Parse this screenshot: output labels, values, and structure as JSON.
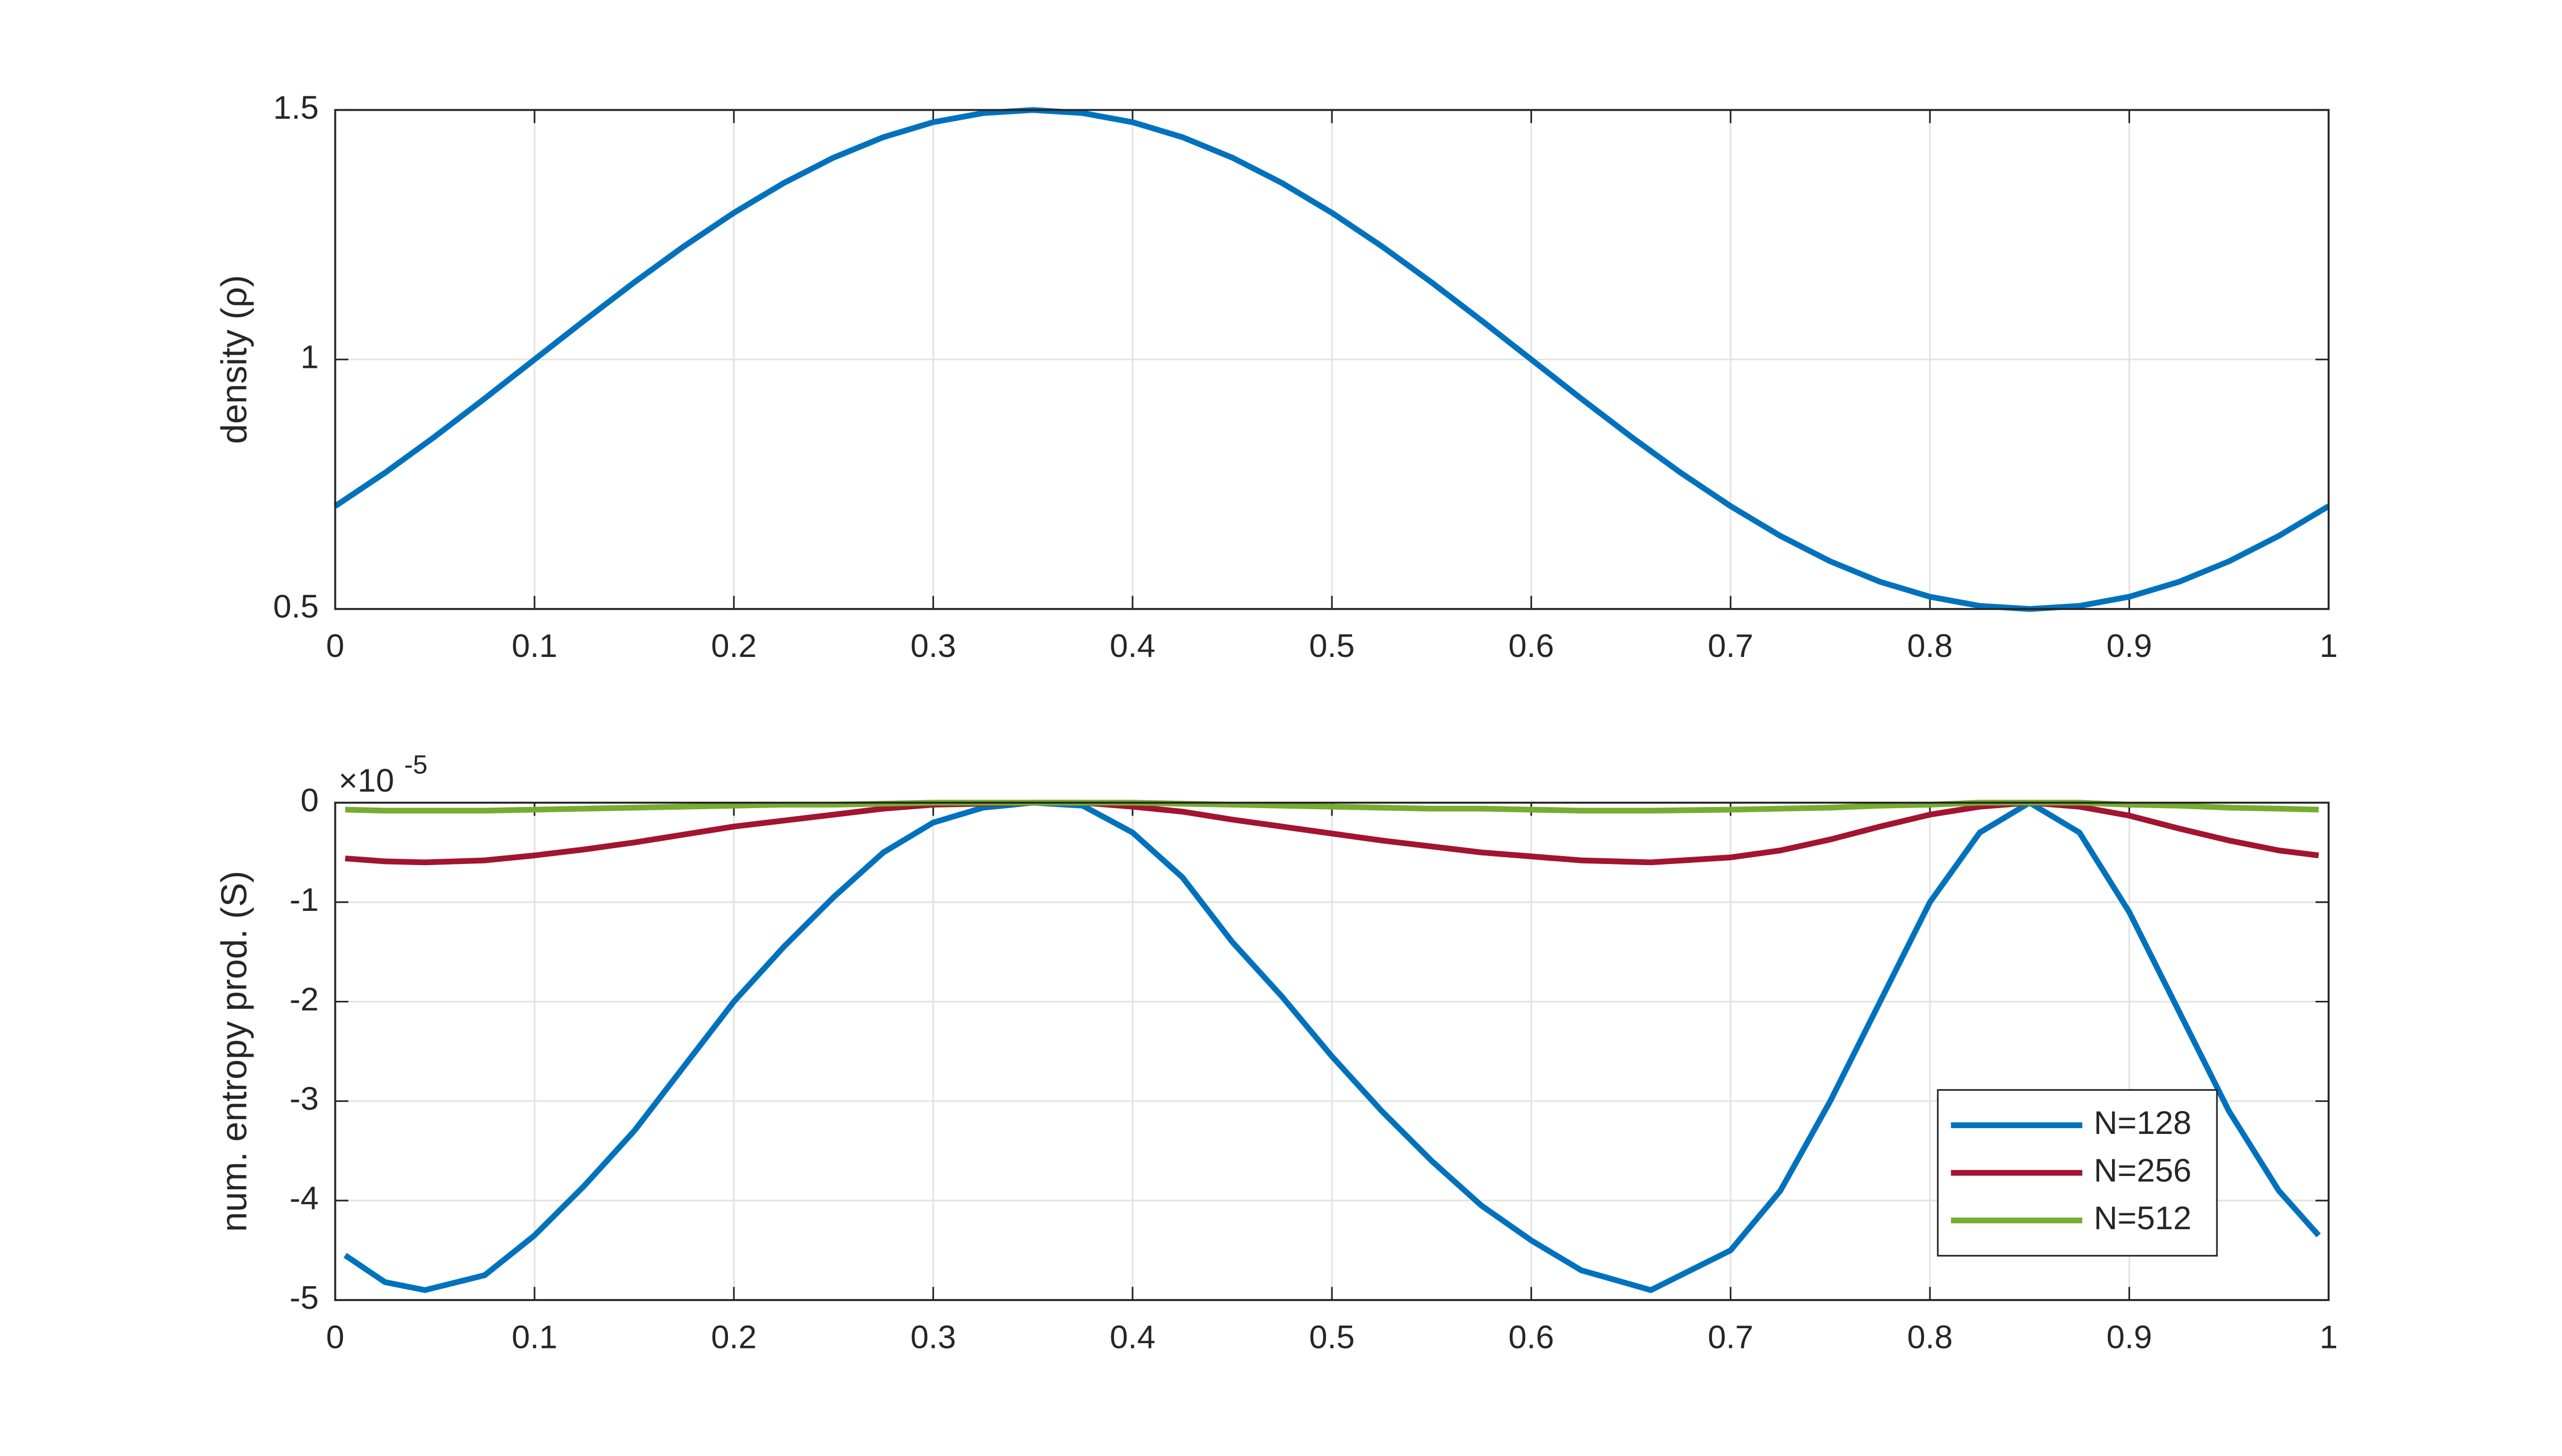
{
  "chart_data": [
    {
      "type": "line",
      "ylabel": "density (ρ)",
      "x": [
        0,
        0.025,
        0.05,
        0.075,
        0.1,
        0.125,
        0.15,
        0.175,
        0.2,
        0.225,
        0.25,
        0.275,
        0.3,
        0.325,
        0.35,
        0.375,
        0.4,
        0.425,
        0.45,
        0.475,
        0.5,
        0.525,
        0.55,
        0.575,
        0.6,
        0.625,
        0.65,
        0.675,
        0.7,
        0.725,
        0.75,
        0.775,
        0.8,
        0.825,
        0.85,
        0.875,
        0.9,
        0.925,
        0.95,
        0.975,
        1
      ],
      "series": [
        {
          "color": "#0072bd",
          "values": [
            0.7061,
            0.773,
            0.8455,
            0.9218,
            1.0,
            1.0782,
            1.1545,
            1.227,
            1.2939,
            1.3536,
            1.4045,
            1.4455,
            1.4755,
            1.4938,
            1.5,
            1.4938,
            1.4755,
            1.4455,
            1.4045,
            1.3536,
            1.2939,
            1.227,
            1.1545,
            1.0782,
            1.0,
            0.9218,
            0.8455,
            0.773,
            0.7061,
            0.6464,
            0.5955,
            0.5545,
            0.5245,
            0.5062,
            0.5,
            0.5062,
            0.5245,
            0.5545,
            0.5955,
            0.6464,
            0.7061
          ]
        }
      ],
      "xlim": [
        0,
        1
      ],
      "xticks": [
        0,
        0.1,
        0.2,
        0.3,
        0.4,
        0.5,
        0.6,
        0.7,
        0.8,
        0.9,
        1
      ],
      "ylim": [
        0.5,
        1.5
      ],
      "yticks": [
        0.5,
        1,
        1.5
      ],
      "grid": true
    },
    {
      "type": "line",
      "ylabel": "num. entropy prod. (S)",
      "y_exponent": {
        "base": "×10",
        "power": "-5"
      },
      "x": [
        0.005,
        0.025,
        0.045,
        0.075,
        0.1,
        0.125,
        0.15,
        0.175,
        0.2,
        0.225,
        0.25,
        0.275,
        0.3,
        0.325,
        0.35,
        0.375,
        0.4,
        0.425,
        0.45,
        0.475,
        0.5,
        0.525,
        0.55,
        0.575,
        0.6,
        0.625,
        0.66,
        0.7,
        0.725,
        0.75,
        0.775,
        0.8,
        0.825,
        0.85,
        0.875,
        0.9,
        0.925,
        0.95,
        0.975,
        0.995
      ],
      "series": [
        {
          "name": "N=128",
          "color": "#0072bd",
          "values": [
            -4.55,
            -4.82,
            -4.9,
            -4.75,
            -4.35,
            -3.85,
            -3.3,
            -2.65,
            -2.0,
            -1.45,
            -0.95,
            -0.5,
            -0.2,
            -0.05,
            0,
            -0.03,
            -0.3,
            -0.75,
            -1.4,
            -1.95,
            -2.55,
            -3.1,
            -3.6,
            -4.05,
            -4.4,
            -4.7,
            -4.9,
            -4.5,
            -3.9,
            -3.0,
            -2.0,
            -1.0,
            -0.3,
            0,
            -0.3,
            -1.1,
            -2.1,
            -3.1,
            -3.9,
            -4.35
          ]
        },
        {
          "name": "N=256",
          "color": "#a2142f",
          "values": [
            -0.56,
            -0.59,
            -0.6,
            -0.58,
            -0.53,
            -0.47,
            -0.4,
            -0.32,
            -0.24,
            -0.18,
            -0.12,
            -0.06,
            -0.02,
            -0.01,
            0,
            0,
            -0.04,
            -0.09,
            -0.17,
            -0.24,
            -0.31,
            -0.38,
            -0.44,
            -0.5,
            -0.54,
            -0.58,
            -0.6,
            -0.55,
            -0.48,
            -0.37,
            -0.24,
            -0.12,
            -0.04,
            0,
            -0.04,
            -0.13,
            -0.26,
            -0.38,
            -0.48,
            -0.53
          ]
        },
        {
          "name": "N=512",
          "color": "#77ac30",
          "values": [
            -0.07,
            -0.08,
            -0.08,
            -0.08,
            -0.07,
            -0.06,
            -0.05,
            -0.04,
            -0.03,
            -0.02,
            -0.02,
            -0.01,
            0,
            0,
            0,
            0,
            0,
            -0.01,
            -0.02,
            -0.03,
            -0.04,
            -0.05,
            -0.06,
            -0.06,
            -0.07,
            -0.08,
            -0.08,
            -0.07,
            -0.06,
            -0.05,
            -0.03,
            -0.02,
            0,
            0,
            0,
            -0.02,
            -0.03,
            -0.05,
            -0.06,
            -0.07
          ]
        }
      ],
      "xlim": [
        0,
        1
      ],
      "xticks": [
        0,
        0.1,
        0.2,
        0.3,
        0.4,
        0.5,
        0.6,
        0.7,
        0.8,
        0.9,
        1
      ],
      "ylim": [
        -5,
        0
      ],
      "yticks": [
        -5,
        -4,
        -3,
        -2,
        -1,
        0
      ],
      "grid": true,
      "legend": "southeast"
    }
  ]
}
